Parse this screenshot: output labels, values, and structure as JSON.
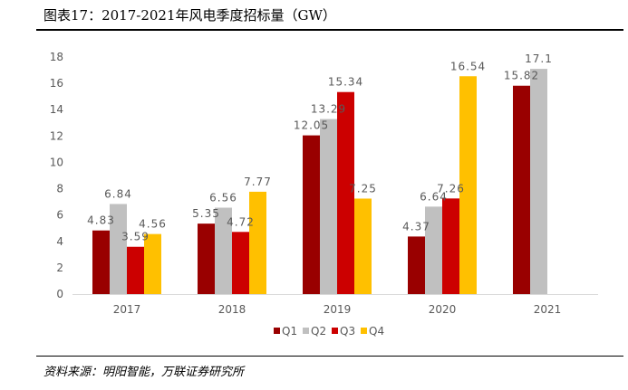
{
  "title": "图表17：2017-2021年风电季度招标量（GW）",
  "source": "资料来源：明阳智能，万联证券研究所",
  "chart_data": {
    "type": "bar",
    "title": "图表17：2017-2021年风电季度招标量（GW）",
    "xlabel": "",
    "ylabel": "",
    "ylim": [
      0,
      18
    ],
    "yticks": [
      0,
      2,
      4,
      6,
      8,
      10,
      12,
      14,
      16,
      18
    ],
    "grid": false,
    "legend_position": "bottom",
    "categories": [
      "2017",
      "2018",
      "2019",
      "2020",
      "2021"
    ],
    "series": [
      {
        "name": "Q1",
        "color": "#990000",
        "values": [
          4.83,
          5.35,
          12.05,
          4.37,
          15.82
        ],
        "labels": [
          "4.83",
          "5.35",
          "12.05",
          "4.37",
          "15.82"
        ]
      },
      {
        "name": "Q2",
        "color": "#C0C0C0",
        "values": [
          6.84,
          6.56,
          13.29,
          6.64,
          17.1
        ],
        "labels": [
          "6.84",
          "6.56",
          "13.29",
          "6.64",
          "17.1"
        ]
      },
      {
        "name": "Q3",
        "color": "#CC0000",
        "values": [
          3.59,
          4.72,
          15.34,
          7.26,
          null
        ],
        "labels": [
          "3.59",
          "4.72",
          "15.34",
          "7.26",
          null
        ]
      },
      {
        "name": "Q4",
        "color": "#FFC000",
        "values": [
          4.56,
          7.77,
          7.25,
          16.54,
          null
        ],
        "labels": [
          "4.56",
          "7.77",
          "7.25",
          "16.54",
          null
        ]
      }
    ]
  }
}
